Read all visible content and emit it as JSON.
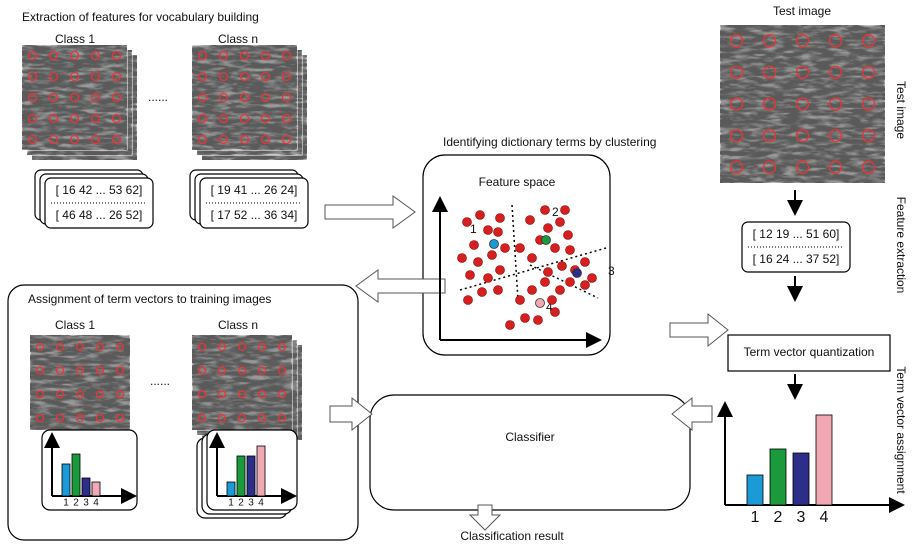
{
  "extraction": {
    "title": "Extraction of features for vocabulary building",
    "classes": [
      "Class 1",
      "Class n"
    ],
    "ellipsis": "......",
    "vectors": [
      [
        "[ 16 42 ... 53 62]",
        "[ 46 48 ... 26 52]"
      ],
      [
        "[ 19 41 ... 26 24]",
        "[ 17 52 ... 36 34]"
      ]
    ]
  },
  "clustering": {
    "title": "Identifying dictionary terms by clustering",
    "panel_title": "Feature space",
    "cluster_labels": [
      "1",
      "2",
      "3",
      "4"
    ]
  },
  "test": {
    "title": "Test image",
    "side_labels": [
      "Test image",
      "Feature extraction",
      "Term vector assignment"
    ],
    "vectors": [
      "[ 12 19 ... 51 60]",
      "[ 16 24 ... 37 52]"
    ],
    "quantization": "Term vector quantization",
    "histogram_labels": [
      "1",
      "2",
      "3",
      "4"
    ]
  },
  "assignment": {
    "title": "Assignment of term vectors to training images",
    "classes": [
      "Class 1",
      "Class n"
    ],
    "ellipsis": "......",
    "histogram_labels": [
      [
        "1",
        "2",
        "3",
        "4"
      ],
      [
        "1",
        "2",
        "3",
        "4"
      ]
    ]
  },
  "classifier": {
    "label": "Classifier",
    "result": "Classification result"
  }
}
